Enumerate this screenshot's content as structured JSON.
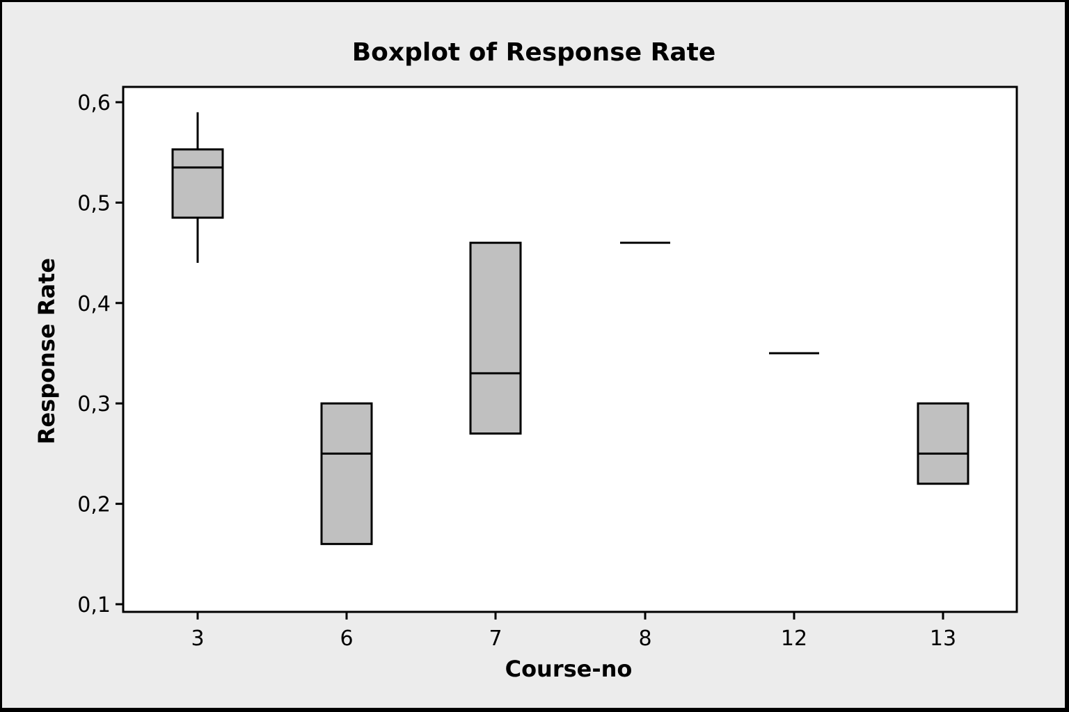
{
  "chart_data": {
    "type": "boxplot",
    "title": "Boxplot of Response Rate",
    "xlabel": "Course-no",
    "ylabel": "Response Rate",
    "ylim": [
      0.1,
      0.6
    ],
    "yticks": [
      0.1,
      0.2,
      0.3,
      0.4,
      0.5,
      0.6
    ],
    "ytick_labels": [
      "0,1",
      "0,2",
      "0,3",
      "0,4",
      "0,5",
      "0,6"
    ],
    "categories": [
      "3",
      "6",
      "7",
      "8",
      "12",
      "13"
    ],
    "boxes": [
      {
        "category": "3",
        "min": 0.44,
        "q1": 0.485,
        "median": 0.535,
        "q3": 0.553,
        "max": 0.59
      },
      {
        "category": "6",
        "min": 0.16,
        "q1": 0.16,
        "median": 0.25,
        "q3": 0.3,
        "max": 0.3
      },
      {
        "category": "7",
        "min": 0.27,
        "q1": 0.27,
        "median": 0.33,
        "q3": 0.46,
        "max": 0.46
      },
      {
        "category": "8",
        "min": 0.46,
        "q1": 0.46,
        "median": 0.46,
        "q3": 0.46,
        "max": 0.46
      },
      {
        "category": "12",
        "min": 0.35,
        "q1": 0.35,
        "median": 0.35,
        "q3": 0.35,
        "max": 0.35
      },
      {
        "category": "13",
        "min": 0.22,
        "q1": 0.22,
        "median": 0.25,
        "q3": 0.3,
        "max": 0.3
      }
    ],
    "box_fill": "#c0c0c0",
    "plot_background": "#ffffff",
    "figure_background": "#ececec",
    "grid": false,
    "legend": "none"
  }
}
